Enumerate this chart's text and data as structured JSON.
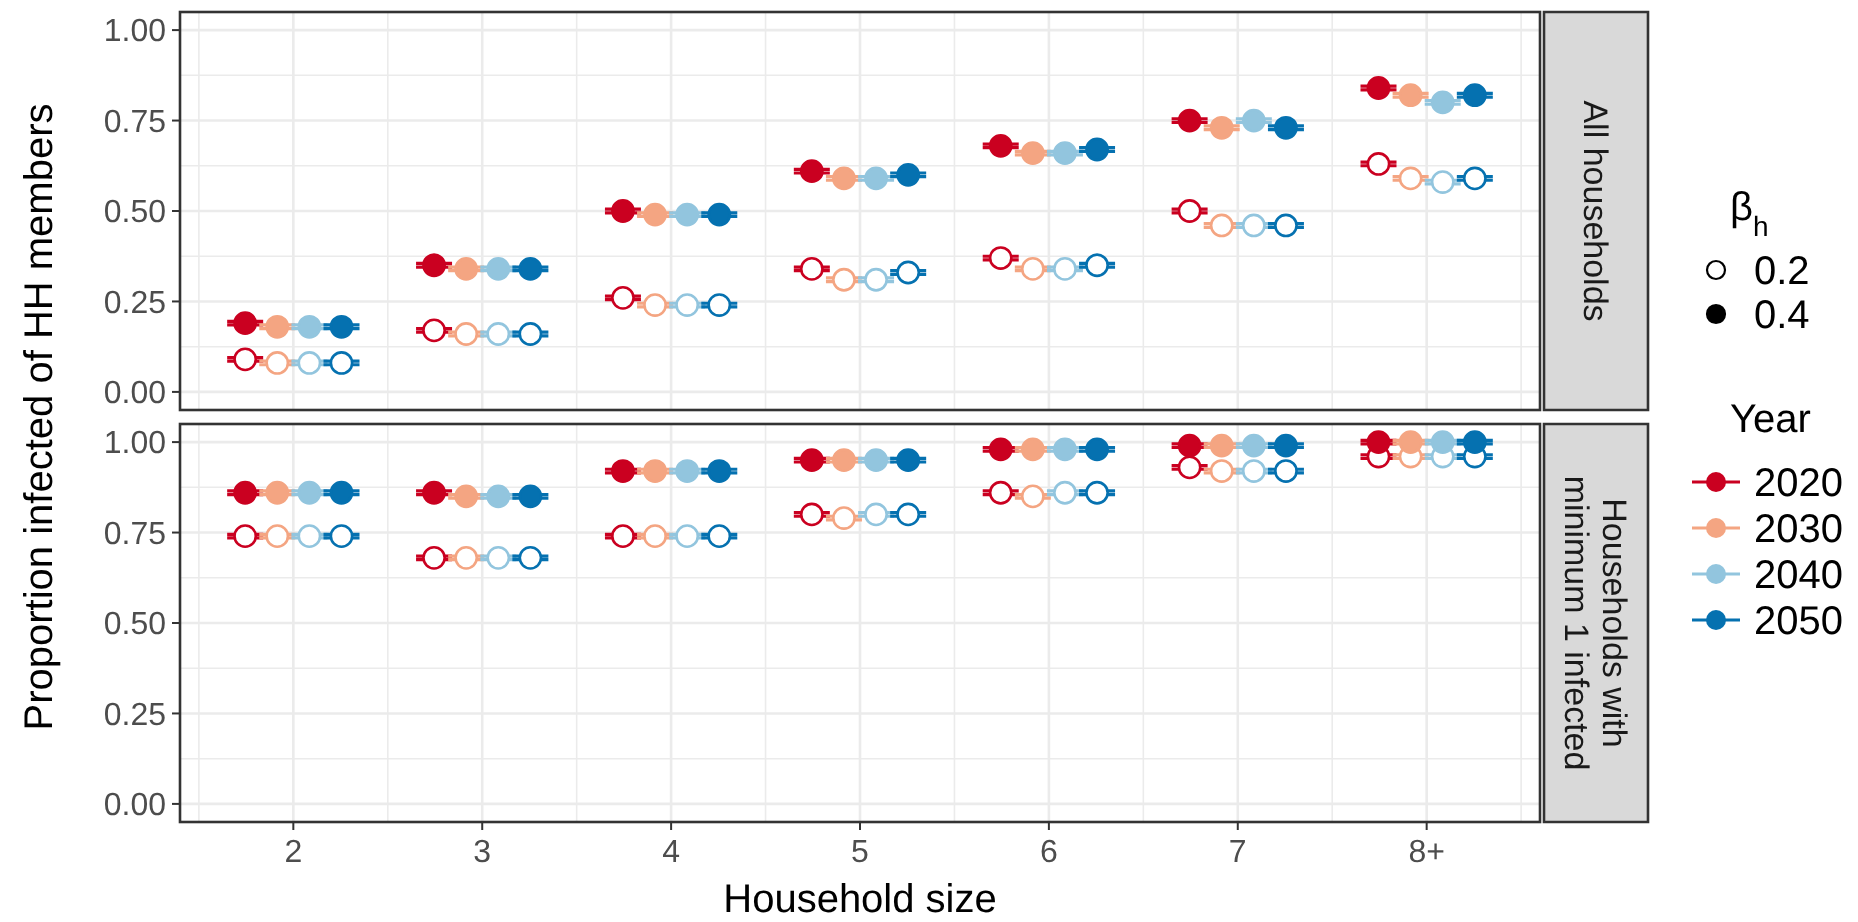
{
  "chart_data": [
    {
      "type": "scatter",
      "ylabel": "Proportion infected of HH members",
      "legend_title": "Year",
      "legend": "right",
      "grid": true,
      "marker": "circle",
      "tick_labels": "y",
      "annotations": [
        "All households",
        "β$_{h}$",
        "0.2",
        "0.4"
      ],
      "ylim": [
        -0.05,
        1.05
      ],
      "yticks": [
        {
          "value": 0,
          "label": "0.00"
        },
        {
          "value": 0.125,
          "label": null
        },
        {
          "value": 0.25,
          "label": "0.25"
        },
        {
          "value": 0.375,
          "label": null
        },
        {
          "value": 0.5,
          "label": "0.50"
        },
        {
          "value": 0.625,
          "label": null
        },
        {
          "value": 0.75,
          "label": "0.75"
        },
        {
          "value": 0.875,
          "label": null
        },
        {
          "value": 1,
          "label": "1.00"
        }
      ],
      "series": [
        {
          "color": "#ca0020",
          "values": [
            0.09,
            0.17,
            0.26,
            0.34,
            0.37,
            0.5,
            0.63
          ],
          "errors": [
            0.005,
            0.005,
            0.005,
            0.005,
            0.005,
            0.005,
            0.005
          ]
        },
        {
          "color": "#f4a582",
          "values": [
            0.08,
            0.16,
            0.24,
            0.31,
            0.34,
            0.46,
            0.59
          ],
          "errors": [
            0.005,
            0.005,
            0.005,
            0.005,
            0.005,
            0.005,
            0.005
          ]
        },
        {
          "color": "#92c5de",
          "values": [
            0.08,
            0.16,
            0.24,
            0.31,
            0.34,
            0.46,
            0.58
          ],
          "errors": [
            0.005,
            0.005,
            0.005,
            0.005,
            0.005,
            0.005,
            0.005
          ]
        },
        {
          "color": "#0571b0",
          "values": [
            0.08,
            0.16,
            0.24,
            0.33,
            0.35,
            0.46,
            0.59
          ],
          "errors": [
            0.005,
            0.005,
            0.005,
            0.005,
            0.005,
            0.005,
            0.005
          ]
        },
        {
          "name": "2020",
          "color": "#ca0020",
          "values": [
            0.19,
            0.35,
            0.5,
            0.61,
            0.68,
            0.75,
            0.84
          ],
          "errors": [
            0.005,
            0.005,
            0.005,
            0.005,
            0.005,
            0.005,
            0.005
          ]
        },
        {
          "name": "2030",
          "color": "#f4a582",
          "values": [
            0.18,
            0.34,
            0.49,
            0.59,
            0.66,
            0.73,
            0.82
          ],
          "errors": [
            0.005,
            0.005,
            0.005,
            0.005,
            0.005,
            0.005,
            0.005
          ]
        },
        {
          "name": "2040",
          "color": "#92c5de",
          "values": [
            0.18,
            0.34,
            0.49,
            0.59,
            0.66,
            0.75,
            0.8
          ],
          "errors": [
            0.005,
            0.005,
            0.005,
            0.005,
            0.005,
            0.005,
            0.005
          ]
        },
        {
          "name": "2050",
          "color": "#0571b0",
          "values": [
            0.18,
            0.34,
            0.49,
            0.6,
            0.67,
            0.73,
            0.82
          ],
          "errors": [
            0.005,
            0.005,
            0.005,
            0.005,
            0.005,
            0.005,
            0.005
          ]
        }
      ]
    },
    {
      "type": "scatter",
      "annotations": [
        "Households with minimum 1 infected"
      ],
      "xlabel": "Household size",
      "grid": true,
      "marker": "circle",
      "categories": [
        "2",
        "3",
        "4",
        "5",
        "6",
        "7",
        "8+"
      ],
      "ylim": [
        -0.05,
        1.05
      ],
      "yticks": [
        {
          "value": 0,
          "label": "0.00"
        },
        {
          "value": 0.125,
          "label": null
        },
        {
          "value": 0.25,
          "label": "0.25"
        },
        {
          "value": 0.375,
          "label": null
        },
        {
          "value": 0.5,
          "label": "0.50"
        },
        {
          "value": 0.625,
          "label": null
        },
        {
          "value": 0.75,
          "label": "0.75"
        },
        {
          "value": 0.875,
          "label": null
        },
        {
          "value": 1,
          "label": "1.00"
        }
      ],
      "series": [
        {
          "color": "#ca0020",
          "values": [
            0.74,
            0.68,
            0.74,
            0.8,
            0.86,
            0.93,
            0.96
          ],
          "errors": [
            0.005,
            0.005,
            0.005,
            0.005,
            0.005,
            0.005,
            0.005
          ]
        },
        {
          "color": "#f4a582",
          "values": [
            0.74,
            0.68,
            0.74,
            0.79,
            0.85,
            0.92,
            0.96
          ],
          "errors": [
            0.005,
            0.005,
            0.005,
            0.005,
            0.005,
            0.005,
            0.005
          ]
        },
        {
          "color": "#92c5de",
          "values": [
            0.74,
            0.68,
            0.74,
            0.8,
            0.86,
            0.92,
            0.96
          ],
          "errors": [
            0.005,
            0.005,
            0.005,
            0.005,
            0.005,
            0.005,
            0.005
          ]
        },
        {
          "color": "#0571b0",
          "values": [
            0.74,
            0.68,
            0.74,
            0.8,
            0.86,
            0.92,
            0.96
          ],
          "errors": [
            0.005,
            0.005,
            0.005,
            0.005,
            0.005,
            0.005,
            0.005
          ]
        },
        {
          "color": "#ca0020",
          "values": [
            0.86,
            0.86,
            0.92,
            0.95,
            0.98,
            0.99,
            1.0
          ],
          "errors": [
            0.005,
            0.005,
            0.005,
            0.005,
            0.005,
            0.005,
            0.005
          ]
        },
        {
          "color": "#f4a582",
          "values": [
            0.86,
            0.85,
            0.92,
            0.95,
            0.98,
            0.99,
            1.0
          ],
          "errors": [
            0.005,
            0.005,
            0.005,
            0.005,
            0.005,
            0.005,
            0.005
          ]
        },
        {
          "color": "#92c5de",
          "values": [
            0.86,
            0.85,
            0.92,
            0.95,
            0.98,
            0.99,
            1.0
          ],
          "errors": [
            0.005,
            0.005,
            0.005,
            0.005,
            0.005,
            0.005,
            0.005
          ]
        },
        {
          "color": "#0571b0",
          "values": [
            0.86,
            0.85,
            0.92,
            0.95,
            0.98,
            0.99,
            1.0
          ],
          "errors": [
            0.005,
            0.005,
            0.005,
            0.005,
            0.005,
            0.005,
            0.005
          ]
        }
      ]
    }
  ]
}
